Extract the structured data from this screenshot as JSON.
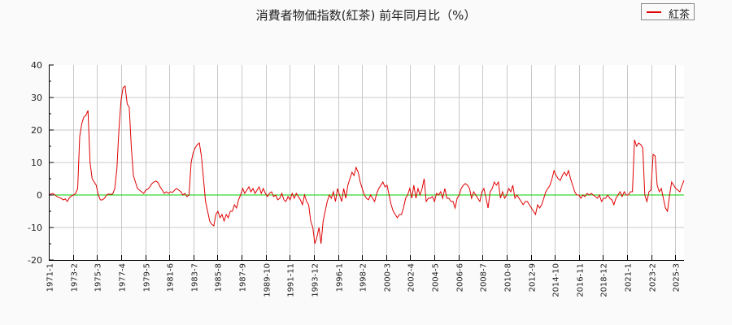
{
  "title": "消費者物価指数(紅茶) 前年同月比（%）",
  "legend": {
    "label": "紅茶",
    "color": "#e00000"
  },
  "colors": {
    "series": "#e00000",
    "zero_line": "#00cc00",
    "grid": "#c8c8c8",
    "plot_bg": "#ffffff",
    "page_bg": "#fafafa"
  },
  "chart_data": {
    "type": "line",
    "title": "消費者物価指数(紅茶) 前年同月比（%）",
    "xlabel": "",
    "ylabel": "",
    "ylim": [
      -20,
      40
    ],
    "yticks": [
      -20,
      -10,
      0,
      10,
      20,
      30,
      40
    ],
    "grid": true,
    "legend_position": "top-right",
    "x_tick_labels": [
      "1971-1",
      "1973-2",
      "1975-3",
      "1977-4",
      "1979-5",
      "1981-6",
      "1983-7",
      "1985-8",
      "1987-9",
      "1989-10",
      "1991-11",
      "1993-12",
      "1996-1",
      "1998-2",
      "2000-3",
      "2002-4",
      "2004-5",
      "2006-6",
      "2008-7",
      "2010-8",
      "2012-9",
      "2014-10",
      "2016-11",
      "2018-12",
      "2021-1",
      "2023-2",
      "2025-3"
    ],
    "series": [
      {
        "name": "紅茶",
        "color": "#e00000",
        "x_start": "1971-1",
        "step_months": 3,
        "values": [
          0,
          0.3,
          0.5,
          0,
          -0.5,
          -0.8,
          -1,
          -1.5,
          -1.2,
          -2,
          -0.8,
          -0.3,
          0,
          0.5,
          2,
          18,
          22,
          24,
          24.5,
          26,
          10,
          5,
          4,
          3,
          0,
          -1.5,
          -1.5,
          -1,
          0,
          0.3,
          0.2,
          0.3,
          2,
          8,
          20,
          29,
          33,
          33.5,
          28,
          27,
          15,
          6,
          4,
          2,
          1.5,
          1,
          0.5,
          1.5,
          1.8,
          2.5,
          3.5,
          4,
          4.3,
          3.8,
          2.5,
          1.5,
          0.5,
          1,
          0.5,
          1,
          0.8,
          1.5,
          2,
          1.5,
          1,
          0,
          0.5,
          -0.5,
          0,
          10,
          13,
          14.5,
          15.5,
          16,
          12,
          5,
          -2,
          -5,
          -8,
          -9,
          -9.5,
          -6,
          -5,
          -7,
          -6,
          -8,
          -6,
          -7,
          -5,
          -5,
          -3,
          -4,
          -1.5,
          0,
          2,
          0.5,
          1.5,
          2.5,
          1,
          2,
          0.5,
          1.5,
          2.5,
          0.5,
          2,
          0.5,
          -0.5,
          0.5,
          1,
          -0.5,
          0,
          -1.5,
          -1,
          0.5,
          -1.5,
          -2,
          -0.5,
          -1.5,
          0.5,
          -1,
          0.5,
          -0.5,
          -1.5,
          -3,
          0,
          -2,
          -3,
          -8,
          -10,
          -15,
          -13,
          -10,
          -15,
          -8,
          -5,
          -2,
          0,
          -1,
          1,
          -2,
          2,
          0,
          -2,
          2,
          -1,
          3,
          5,
          7,
          6,
          8.5,
          7,
          4,
          2,
          0,
          -1,
          -1.5,
          0,
          -1,
          -2,
          0.5,
          2,
          3,
          4,
          2.5,
          3,
          0,
          -3,
          -5,
          -6,
          -7,
          -6,
          -6,
          -4,
          -1,
          0,
          2,
          -1,
          3,
          -1,
          2,
          0,
          2,
          5,
          -2,
          -1,
          -1,
          -0.5,
          -2,
          0.5,
          0,
          1,
          -1,
          2,
          -1,
          -1,
          -2,
          -2,
          -4,
          -1,
          0,
          2,
          3,
          3.5,
          3,
          2,
          -1,
          1,
          0,
          -1,
          -2,
          1,
          2,
          -1,
          -4,
          1,
          2,
          4,
          3,
          4,
          -1,
          1,
          -1,
          0,
          2,
          1,
          3,
          -1,
          0,
          -1,
          -2,
          -3,
          -2,
          -2,
          -3,
          -4,
          -5,
          -6,
          -3,
          -4,
          -3,
          -1,
          1,
          2,
          3,
          5,
          7.5,
          6,
          5,
          4.5,
          6,
          7,
          6,
          7.5,
          5,
          3,
          1,
          0,
          0,
          -1,
          0,
          -0.5,
          0.5,
          0,
          0.5,
          0,
          -0.5,
          -1,
          0,
          -2,
          -1,
          -1,
          0,
          -1,
          -1.5,
          -3,
          -1,
          0,
          1,
          -0.5,
          1,
          0,
          0,
          1,
          1,
          17,
          15,
          16,
          15.5,
          14.5,
          0,
          -2,
          1,
          1.5,
          12.5,
          12,
          3,
          1,
          2,
          -1,
          -4,
          -5,
          0,
          4,
          3,
          2,
          1.5,
          1,
          3,
          4.5
        ]
      }
    ]
  }
}
